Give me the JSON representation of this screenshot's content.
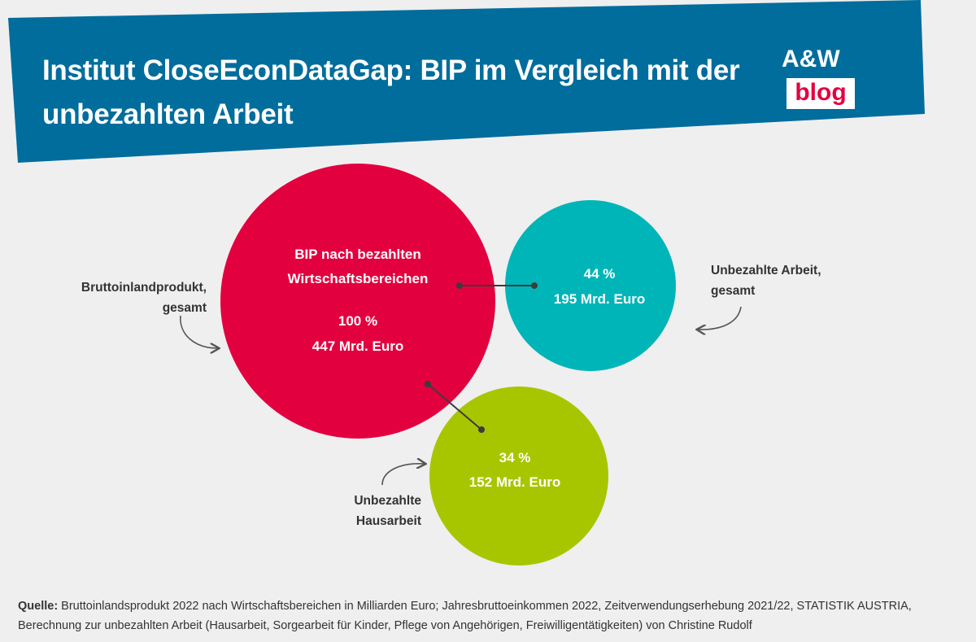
{
  "header": {
    "title": "Institut CloseEconDataGap: BIP im Vergleich mit der unbezahlten Arbeit",
    "bg_color": "#006d9c",
    "logo": {
      "line1": "A&W",
      "line2": "blog",
      "accent": "#e30040"
    }
  },
  "chart_data": {
    "type": "bubble",
    "bubbles": [
      {
        "id": "bip",
        "label_lines": [
          "BIP nach bezahlten",
          "Wirtschaftsbereichen"
        ],
        "percent_label": "100 %",
        "value_label": "447 Mrd. Euro",
        "value": 447,
        "percent": 100,
        "color": "#e3003f",
        "callout_lines": [
          "Bruttoinlandprodukt,",
          "gesamt"
        ]
      },
      {
        "id": "unbezahlte-arbeit",
        "label_lines": [],
        "percent_label": "44 %",
        "value_label": "195 Mrd. Euro",
        "value": 195,
        "percent": 44,
        "color": "#00b5b8",
        "callout_lines": [
          "Unbezahlte Arbeit,",
          "gesamt"
        ]
      },
      {
        "id": "hausarbeit",
        "label_lines": [],
        "percent_label": "34 %",
        "value_label": "152 Mrd. Euro",
        "value": 152,
        "percent": 34,
        "color": "#a8c600",
        "callout_lines": [
          "Unbezahlte",
          "Hausarbeit"
        ]
      }
    ],
    "unit": "Mrd. Euro"
  },
  "source": {
    "label": "Quelle:",
    "text": " Bruttoinlandsprodukt 2022 nach Wirtschaftsbereichen in Milliarden Euro; Jahresbruttoeinkommen 2022, Zeitverwendungserhebung 2021/22, STATISTIK AUSTRIA, Berechnung zur unbezahlten Arbeit (Hausarbeit, Sorgearbeit für Kinder, Pflege von Angehörigen, Freiwilligentätigkeiten) von Christine Rudolf"
  }
}
